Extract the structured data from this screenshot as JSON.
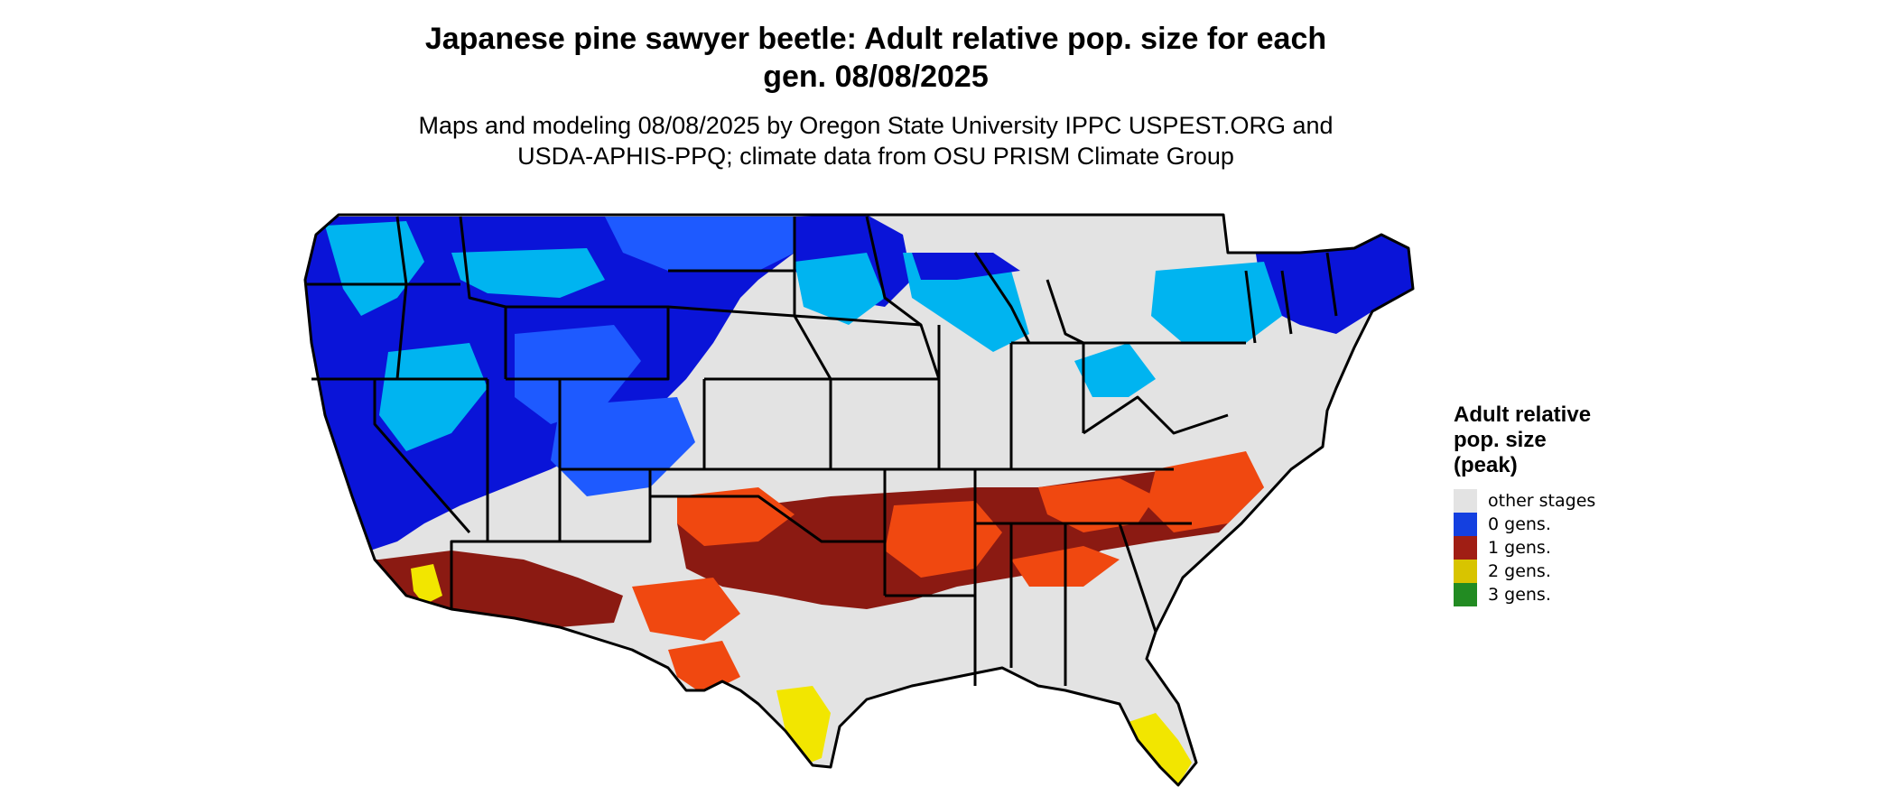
{
  "title": {
    "line1": "Japanese pine sawyer beetle: Adult relative pop. size for each",
    "line2": "gen. 08/08/2025"
  },
  "subtitle": {
    "line1": "Maps and modeling 08/08/2025 by Oregon State University IPPC USPEST.ORG and",
    "line2": "USDA-APHIS-PPQ; climate data from OSU PRISM Climate Group"
  },
  "legend": {
    "title_lines": [
      "Adult relative",
      "pop. size",
      "(peak)"
    ],
    "items": [
      {
        "label": "other stages",
        "color": "#e3e3e3"
      },
      {
        "label": "0 gens.",
        "color": "#1440e0"
      },
      {
        "label": "1 gens.",
        "color": "#a01e14"
      },
      {
        "label": "2 gens.",
        "color": "#d8c400"
      },
      {
        "label": "3 gens.",
        "color": "#228b22"
      }
    ]
  },
  "map_colors": {
    "base": "#e3e3e3",
    "border": "#000000",
    "deep_blue": "#0a14d8",
    "mid_blue": "#1e5aff",
    "light_blue": "#00b4f0",
    "dark_red": "#8b1a12",
    "orange_red": "#f04810",
    "yellow": "#f2e600"
  }
}
